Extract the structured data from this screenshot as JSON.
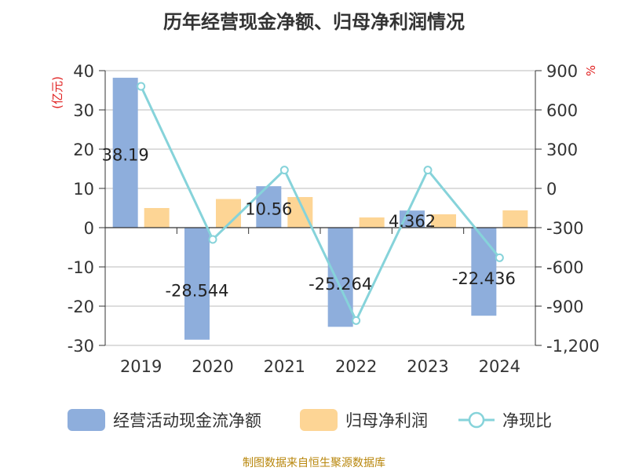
{
  "title": "历年经营现金净额、归母净利润情况",
  "source": "制图数据来自恒生聚源数据库",
  "colors": {
    "cashflow": "#8eaedc",
    "profit": "#fdd595",
    "ratio": "#86d3da",
    "unit": "#e02020",
    "text": "#333333",
    "grid": "#bbbbbb"
  },
  "chart_data": {
    "type": "bar",
    "categories": [
      "2019",
      "2020",
      "2021",
      "2022",
      "2023",
      "2024"
    ],
    "series": [
      {
        "name": "经营活动现金流净额",
        "type": "bar",
        "axis": "left",
        "values": [
          38.19,
          -28.544,
          10.56,
          -25.264,
          4.362,
          -22.436
        ],
        "labels": [
          "38.19",
          "-28.544",
          "10.56",
          "-25.264",
          "4.362",
          "-22.436"
        ]
      },
      {
        "name": "归母净利润",
        "type": "bar",
        "axis": "left",
        "values": [
          5.0,
          7.3,
          7.8,
          2.6,
          3.4,
          4.4
        ]
      },
      {
        "name": "净现比",
        "type": "line",
        "axis": "right",
        "values": [
          780,
          -390,
          140,
          -1010,
          140,
          -530
        ]
      }
    ],
    "y_left": {
      "unit_label": "(亿元)",
      "ylim": [
        -30,
        40
      ],
      "ticks": [
        40,
        30,
        20,
        10,
        0,
        -10,
        -20,
        -30
      ],
      "tick_labels": [
        "40",
        "30",
        "20",
        "10",
        "0",
        "-10",
        "-20",
        "-30"
      ]
    },
    "y_right": {
      "unit_label": "%",
      "ylim": [
        -1200,
        900
      ],
      "ticks": [
        900,
        600,
        300,
        0,
        -300,
        -600,
        -900,
        -1200
      ],
      "tick_labels": [
        "900",
        "600",
        "300",
        "0",
        "-300",
        "-600",
        "-900",
        "-1,200"
      ]
    },
    "grid": true,
    "legend_position": "bottom"
  }
}
